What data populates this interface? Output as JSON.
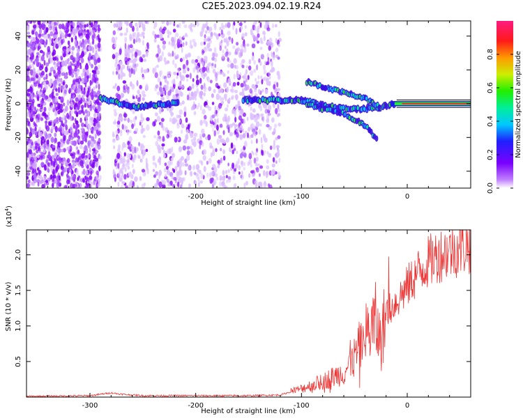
{
  "title": "C2E5.2023.094.02.19.R24",
  "chart_data": [
    {
      "type": "heatmap",
      "xlabel": "Height of straight line (km)",
      "ylabel": "Frequency (Hz)",
      "xlim": [
        -360,
        60
      ],
      "ylim": [
        -50,
        49
      ],
      "xticks": [
        -300,
        -200,
        -100,
        0
      ],
      "yticks": [
        -40,
        -20,
        0,
        20,
        40
      ],
      "colorbar": {
        "label": "Normalized spectral amplitude",
        "range": [
          0.0,
          1.0
        ],
        "ticks": [
          0.0,
          0.2,
          0.4,
          0.6,
          0.8
        ],
        "tick_labels": [
          "0.0",
          "0.2",
          "0.4",
          "0.6",
          "0.8"
        ]
      },
      "colors": {
        "low": "#d9b3ff",
        "mid_low": "#7700ee",
        "mid": "#00d0b0",
        "mid_high": "#22ee22",
        "high": "#ff2020"
      },
      "features": {
        "noise_bands": [
          [
            -360,
            -290
          ],
          [
            -278,
            -245
          ],
          [
            -240,
            -120
          ]
        ],
        "main_trace": [
          [
            -290,
            3
          ],
          [
            -270,
            0
          ],
          [
            -255,
            -2
          ],
          [
            -230,
            0
          ],
          [
            -215,
            0
          ],
          [
            -155,
            2
          ],
          [
            -130,
            2
          ],
          [
            -100,
            2
          ],
          [
            -80,
            -1
          ],
          [
            -60,
            -3
          ],
          [
            -40,
            -3
          ],
          [
            -25,
            -2
          ],
          [
            -10,
            0
          ],
          [
            0,
            0
          ],
          [
            15,
            0
          ],
          [
            60,
            0
          ]
        ],
        "upper_branch": [
          [
            -95,
            13
          ],
          [
            -75,
            9
          ],
          [
            -55,
            6
          ],
          [
            -40,
            3
          ],
          [
            -25,
            -2
          ]
        ],
        "lower_branch": [
          [
            -100,
            1
          ],
          [
            -80,
            -3
          ],
          [
            -60,
            -6
          ],
          [
            -45,
            -11
          ],
          [
            -35,
            -16
          ],
          [
            -28,
            -22
          ]
        ]
      }
    },
    {
      "type": "line",
      "xlabel": "Height of straight line (km)",
      "ylabel": "SNR (10 * v/v)",
      "y_multiplier": "(x10",
      "y_multiplier_exp": "4",
      "y_multiplier_close": ")",
      "xlim": [
        -360,
        60
      ],
      "ylim": [
        0,
        2.35
      ],
      "xticks": [
        -300,
        -200,
        -100,
        0
      ],
      "yticks": [
        0.5,
        1.0,
        1.5,
        2.0
      ],
      "ytick_labels": [
        "0.5",
        "1.0",
        "1.5",
        "2.0"
      ],
      "series": [
        {
          "color": "#ee3333",
          "x": [
            -360,
            -300,
            -280,
            -270,
            -250,
            -200,
            -150,
            -120,
            -100,
            -80,
            -60,
            -50,
            -40,
            -30,
            -25,
            -20,
            -10,
            0,
            10,
            20,
            30,
            40,
            50,
            60
          ],
          "y": [
            0.01,
            0.02,
            0.06,
            0.04,
            0.02,
            0.02,
            0.02,
            0.03,
            0.12,
            0.22,
            0.35,
            0.55,
            0.85,
            1.05,
            0.75,
            1.2,
            1.35,
            1.55,
            1.75,
            1.9,
            2.0,
            2.05,
            2.1,
            2.15
          ]
        }
      ]
    }
  ]
}
